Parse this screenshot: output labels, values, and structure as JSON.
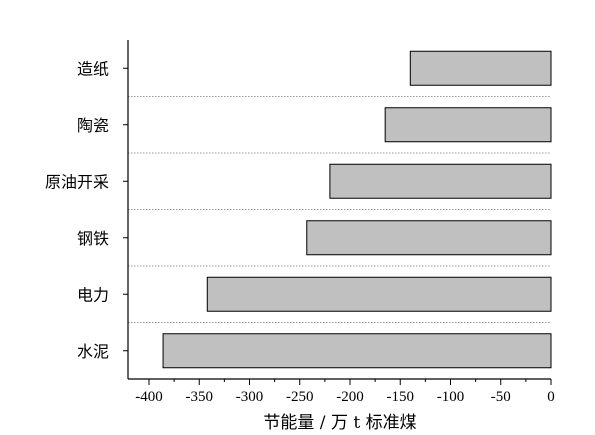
{
  "chart_data": {
    "type": "bar",
    "orientation": "horizontal",
    "categories": [
      "造纸",
      "陶瓷",
      "原油开采",
      "钢铁",
      "电力",
      "水泥"
    ],
    "values": [
      -140,
      -165,
      -220,
      -243,
      -342,
      -386
    ],
    "xlabel": "节能量 / 万 t 标准煤",
    "ylabel": "",
    "title": "",
    "xlim": [
      -420,
      0
    ],
    "xticks": [
      -400,
      -350,
      -300,
      -250,
      -200,
      -150,
      -100,
      -50,
      0
    ],
    "xtick_labels": [
      "-400",
      "-350",
      "-300",
      "-250",
      "-200",
      "-150",
      "-100",
      "-50",
      "0"
    ],
    "bar_color": "#c0c0c0",
    "bar_edge_color": "#000000",
    "separator_color": "#9a9a9a",
    "grid": false,
    "legend": "none"
  }
}
